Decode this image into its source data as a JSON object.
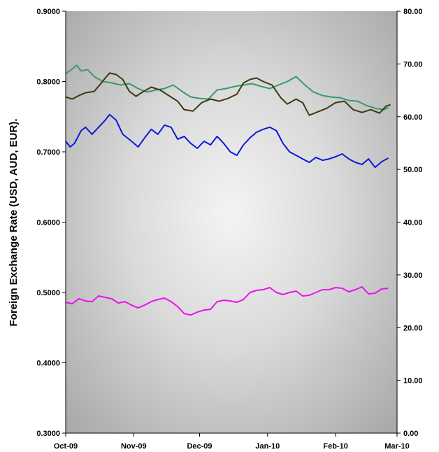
{
  "chart_data": {
    "type": "line",
    "title": "",
    "xlabel": "",
    "ylabel": "Foreign Exchange Rate (USD, AUD, EUR).",
    "y2label": "",
    "x_ticks": [
      "Oct-09",
      "Nov-09",
      "Dec-09",
      "Jan-10",
      "Feb-10",
      "Mar-10"
    ],
    "x_tick_dates": [
      "2009-10-01",
      "2009-11-01",
      "2009-12-01",
      "2010-01-01",
      "2010-02-01",
      "2010-03-01"
    ],
    "xlim": [
      "2009-10-01",
      "2010-03-01"
    ],
    "ylim": [
      0.3,
      0.9
    ],
    "y_ticks": [
      "0.3000",
      "0.4000",
      "0.5000",
      "0.6000",
      "0.7000",
      "0.8000",
      "0.9000"
    ],
    "y2lim": [
      0,
      80
    ],
    "y2_ticks": [
      "0.00",
      "10.00",
      "20.00",
      "30.00",
      "40.00",
      "50.00",
      "60.00",
      "70.00",
      "80.00"
    ],
    "grid": false,
    "legend": "none",
    "background": "radial gradient, light gray center to darker gray edges",
    "series": [
      {
        "color": "#3a9a6a",
        "axis": "left",
        "points": [
          [
            "2009-10-01",
            0.811
          ],
          [
            "2009-10-04",
            0.818
          ],
          [
            "2009-10-06",
            0.823
          ],
          [
            "2009-10-08",
            0.815
          ],
          [
            "2009-10-11",
            0.817
          ],
          [
            "2009-10-14",
            0.807
          ],
          [
            "2009-10-18",
            0.8
          ],
          [
            "2009-10-22",
            0.798
          ],
          [
            "2009-10-26",
            0.795
          ],
          [
            "2009-10-30",
            0.797
          ],
          [
            "2009-11-03",
            0.79
          ],
          [
            "2009-11-07",
            0.785
          ],
          [
            "2009-11-11",
            0.788
          ],
          [
            "2009-11-15",
            0.79
          ],
          [
            "2009-11-19",
            0.795
          ],
          [
            "2009-11-23",
            0.786
          ],
          [
            "2009-11-27",
            0.778
          ],
          [
            "2009-12-01",
            0.776
          ],
          [
            "2009-12-05",
            0.775
          ],
          [
            "2009-12-09",
            0.788
          ],
          [
            "2009-12-13",
            0.79
          ],
          [
            "2009-12-17",
            0.793
          ],
          [
            "2009-12-21",
            0.795
          ],
          [
            "2009-12-25",
            0.797
          ],
          [
            "2009-12-29",
            0.793
          ],
          [
            "2010-01-02",
            0.79
          ],
          [
            "2010-01-06",
            0.795
          ],
          [
            "2010-01-10",
            0.8
          ],
          [
            "2010-01-14",
            0.807
          ],
          [
            "2010-01-18",
            0.795
          ],
          [
            "2010-01-22",
            0.785
          ],
          [
            "2010-01-26",
            0.78
          ],
          [
            "2010-01-30",
            0.778
          ],
          [
            "2010-02-03",
            0.777
          ],
          [
            "2010-02-07",
            0.773
          ],
          [
            "2010-02-11",
            0.772
          ],
          [
            "2010-02-15",
            0.766
          ],
          [
            "2010-02-19",
            0.762
          ],
          [
            "2010-02-23",
            0.76
          ],
          [
            "2010-02-25",
            0.763
          ]
        ]
      },
      {
        "color": "#3a3a10",
        "axis": "left",
        "points": [
          [
            "2009-10-01",
            0.778
          ],
          [
            "2009-10-04",
            0.775
          ],
          [
            "2009-10-07",
            0.78
          ],
          [
            "2009-10-10",
            0.784
          ],
          [
            "2009-10-14",
            0.786
          ],
          [
            "2009-10-17",
            0.797
          ],
          [
            "2009-10-19",
            0.805
          ],
          [
            "2009-10-21",
            0.812
          ],
          [
            "2009-10-24",
            0.81
          ],
          [
            "2009-10-27",
            0.803
          ],
          [
            "2009-10-30",
            0.786
          ],
          [
            "2009-11-02",
            0.779
          ],
          [
            "2009-11-05",
            0.785
          ],
          [
            "2009-11-09",
            0.792
          ],
          [
            "2009-11-13",
            0.788
          ],
          [
            "2009-11-17",
            0.78
          ],
          [
            "2009-11-21",
            0.772
          ],
          [
            "2009-11-24",
            0.76
          ],
          [
            "2009-11-28",
            0.758
          ],
          [
            "2009-12-02",
            0.77
          ],
          [
            "2009-12-06",
            0.775
          ],
          [
            "2009-12-10",
            0.772
          ],
          [
            "2009-12-14",
            0.776
          ],
          [
            "2009-12-18",
            0.782
          ],
          [
            "2009-12-21",
            0.798
          ],
          [
            "2009-12-24",
            0.803
          ],
          [
            "2009-12-27",
            0.805
          ],
          [
            "2009-12-30",
            0.8
          ],
          [
            "2010-01-03",
            0.795
          ],
          [
            "2010-01-07",
            0.777
          ],
          [
            "2010-01-10",
            0.768
          ],
          [
            "2010-01-14",
            0.775
          ],
          [
            "2010-01-17",
            0.77
          ],
          [
            "2010-01-20",
            0.752
          ],
          [
            "2010-01-24",
            0.757
          ],
          [
            "2010-01-28",
            0.762
          ],
          [
            "2010-02-01",
            0.77
          ],
          [
            "2010-02-05",
            0.772
          ],
          [
            "2010-02-09",
            0.76
          ],
          [
            "2010-02-13",
            0.756
          ],
          [
            "2010-02-17",
            0.76
          ],
          [
            "2010-02-21",
            0.755
          ],
          [
            "2010-02-24",
            0.765
          ],
          [
            "2010-02-26",
            0.767
          ]
        ]
      },
      {
        "color": "#0a1ad8",
        "axis": "left",
        "points": [
          [
            "2009-10-01",
            0.715
          ],
          [
            "2009-10-03",
            0.707
          ],
          [
            "2009-10-05",
            0.712
          ],
          [
            "2009-10-08",
            0.73
          ],
          [
            "2009-10-10",
            0.735
          ],
          [
            "2009-10-13",
            0.725
          ],
          [
            "2009-10-16",
            0.735
          ],
          [
            "2009-10-19",
            0.745
          ],
          [
            "2009-10-21",
            0.753
          ],
          [
            "2009-10-24",
            0.745
          ],
          [
            "2009-10-27",
            0.725
          ],
          [
            "2009-10-31",
            0.715
          ],
          [
            "2009-11-03",
            0.707
          ],
          [
            "2009-11-06",
            0.72
          ],
          [
            "2009-11-09",
            0.732
          ],
          [
            "2009-11-12",
            0.725
          ],
          [
            "2009-11-15",
            0.738
          ],
          [
            "2009-11-18",
            0.735
          ],
          [
            "2009-11-21",
            0.718
          ],
          [
            "2009-11-24",
            0.722
          ],
          [
            "2009-11-27",
            0.712
          ],
          [
            "2009-11-30",
            0.705
          ],
          [
            "2009-12-03",
            0.715
          ],
          [
            "2009-12-06",
            0.71
          ],
          [
            "2009-12-09",
            0.722
          ],
          [
            "2009-12-12",
            0.712
          ],
          [
            "2009-12-15",
            0.7
          ],
          [
            "2009-12-18",
            0.695
          ],
          [
            "2009-12-21",
            0.71
          ],
          [
            "2009-12-24",
            0.72
          ],
          [
            "2009-12-27",
            0.728
          ],
          [
            "2009-12-30",
            0.732
          ],
          [
            "2010-01-02",
            0.735
          ],
          [
            "2010-01-05",
            0.73
          ],
          [
            "2010-01-08",
            0.712
          ],
          [
            "2010-01-11",
            0.7
          ],
          [
            "2010-01-14",
            0.695
          ],
          [
            "2010-01-17",
            0.69
          ],
          [
            "2010-01-20",
            0.685
          ],
          [
            "2010-01-23",
            0.692
          ],
          [
            "2010-01-26",
            0.688
          ],
          [
            "2010-01-29",
            0.69
          ],
          [
            "2010-02-01",
            0.693
          ],
          [
            "2010-02-04",
            0.697
          ],
          [
            "2010-02-07",
            0.69
          ],
          [
            "2010-02-10",
            0.685
          ],
          [
            "2010-02-13",
            0.682
          ],
          [
            "2010-02-16",
            0.69
          ],
          [
            "2010-02-19",
            0.678
          ],
          [
            "2010-02-22",
            0.686
          ],
          [
            "2010-02-25",
            0.691
          ]
        ]
      },
      {
        "color": "#ee10ee",
        "axis": "left",
        "points": [
          [
            "2009-10-01",
            0.486
          ],
          [
            "2009-10-04",
            0.484
          ],
          [
            "2009-10-07",
            0.491
          ],
          [
            "2009-10-10",
            0.488
          ],
          [
            "2009-10-13",
            0.487
          ],
          [
            "2009-10-16",
            0.495
          ],
          [
            "2009-10-19",
            0.493
          ],
          [
            "2009-10-22",
            0.491
          ],
          [
            "2009-10-25",
            0.485
          ],
          [
            "2009-10-28",
            0.487
          ],
          [
            "2009-10-31",
            0.482
          ],
          [
            "2009-11-03",
            0.478
          ],
          [
            "2009-11-06",
            0.482
          ],
          [
            "2009-11-09",
            0.487
          ],
          [
            "2009-11-12",
            0.49
          ],
          [
            "2009-11-15",
            0.492
          ],
          [
            "2009-11-18",
            0.487
          ],
          [
            "2009-11-21",
            0.48
          ],
          [
            "2009-11-24",
            0.47
          ],
          [
            "2009-11-27",
            0.468
          ],
          [
            "2009-11-30",
            0.472
          ],
          [
            "2009-12-03",
            0.475
          ],
          [
            "2009-12-06",
            0.476
          ],
          [
            "2009-12-09",
            0.487
          ],
          [
            "2009-12-12",
            0.489
          ],
          [
            "2009-12-15",
            0.488
          ],
          [
            "2009-12-18",
            0.486
          ],
          [
            "2009-12-21",
            0.49
          ],
          [
            "2009-12-24",
            0.5
          ],
          [
            "2009-12-27",
            0.503
          ],
          [
            "2009-12-30",
            0.504
          ],
          [
            "2010-01-02",
            0.507
          ],
          [
            "2010-01-05",
            0.5
          ],
          [
            "2010-01-08",
            0.497
          ],
          [
            "2010-01-11",
            0.5
          ],
          [
            "2010-01-14",
            0.502
          ],
          [
            "2010-01-17",
            0.495
          ],
          [
            "2010-01-20",
            0.496
          ],
          [
            "2010-01-23",
            0.5
          ],
          [
            "2010-01-26",
            0.504
          ],
          [
            "2010-01-29",
            0.504
          ],
          [
            "2010-02-01",
            0.507
          ],
          [
            "2010-02-04",
            0.506
          ],
          [
            "2010-02-07",
            0.501
          ],
          [
            "2010-02-10",
            0.504
          ],
          [
            "2010-02-13",
            0.508
          ],
          [
            "2010-02-16",
            0.498
          ],
          [
            "2010-02-19",
            0.499
          ],
          [
            "2010-02-22",
            0.505
          ],
          [
            "2010-02-25",
            0.506
          ]
        ]
      }
    ]
  }
}
